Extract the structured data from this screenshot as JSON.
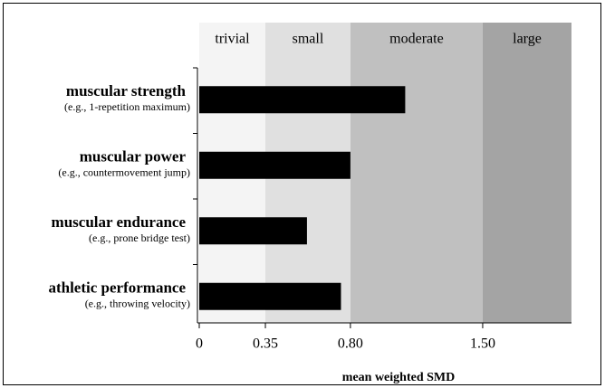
{
  "chart_data": {
    "type": "bar",
    "orientation": "horizontal",
    "categories": [
      "muscular strength",
      "muscular power",
      "muscular endurance",
      "athletic performance"
    ],
    "category_notes": [
      "(e.g., 1-repetition maximum)",
      "(e.g., countermovement jump)",
      "(e.g., prone bridge test)",
      "(e.g., throwing velocity)"
    ],
    "values": [
      1.09,
      0.8,
      0.57,
      0.75
    ],
    "color": "#000000",
    "xlabel": "mean weighted SMD",
    "xlim": [
      0,
      1.97
    ],
    "xticks": [
      0,
      0.35,
      {
        "value": 0.8,
        "label": "0.80"
      },
      {
        "value": 1.5,
        "label": "1.50"
      }
    ],
    "bands": [
      {
        "label": "trivial",
        "from": 0,
        "color": "#f4f4f4"
      },
      {
        "label": "small",
        "from": 0.35,
        "color": "#e0e0e0"
      },
      {
        "label": "moderate",
        "from": 0.8,
        "color": "#c0c0c0"
      },
      {
        "label": "large",
        "from": 1.5,
        "color": "#a4a4a4"
      }
    ]
  }
}
